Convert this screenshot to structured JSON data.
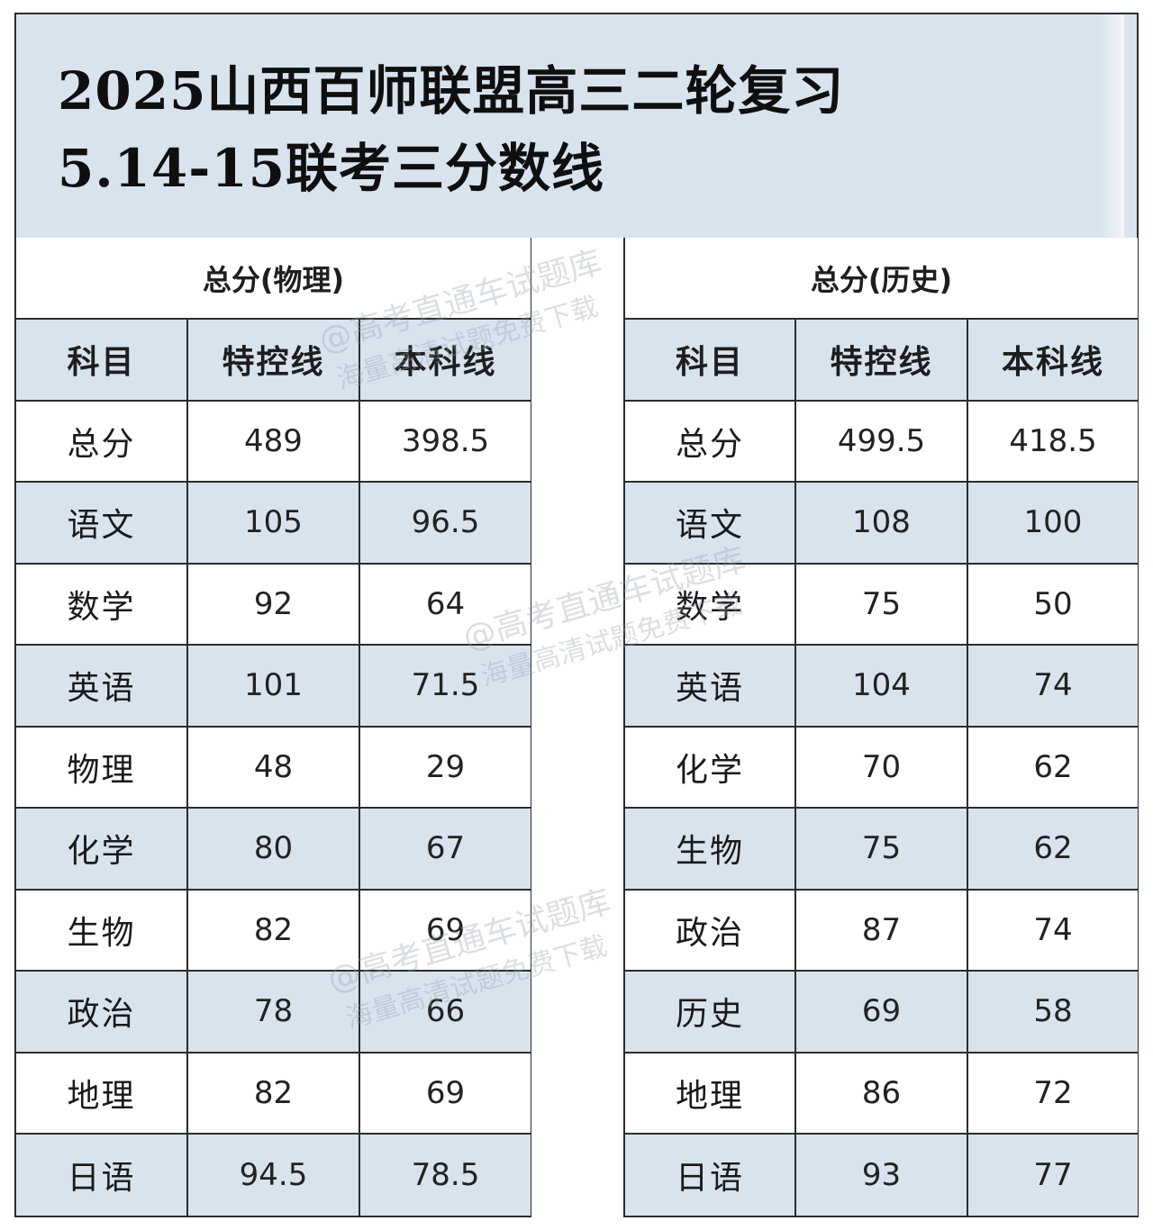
{
  "title": {
    "line1": "2025山西百师联盟高三二轮复习",
    "line2": "5.14-15联考三分数线"
  },
  "watermark": {
    "line1": "@高考直通车试题库",
    "line2": "海量高清试题免费下载"
  },
  "tables": [
    {
      "group": "总分(物理)",
      "headers": [
        "科目",
        "特控线",
        "本科线"
      ],
      "rows": [
        {
          "subject": "总分",
          "special": "489",
          "undergrad": "398.5"
        },
        {
          "subject": "语文",
          "special": "105",
          "undergrad": "96.5"
        },
        {
          "subject": "数学",
          "special": "92",
          "undergrad": "64"
        },
        {
          "subject": "英语",
          "special": "101",
          "undergrad": "71.5"
        },
        {
          "subject": "物理",
          "special": "48",
          "undergrad": "29"
        },
        {
          "subject": "化学",
          "special": "80",
          "undergrad": "67"
        },
        {
          "subject": "生物",
          "special": "82",
          "undergrad": "69"
        },
        {
          "subject": "政治",
          "special": "78",
          "undergrad": "66"
        },
        {
          "subject": "地理",
          "special": "82",
          "undergrad": "69"
        },
        {
          "subject": "日语",
          "special": "94.5",
          "undergrad": "78.5"
        }
      ]
    },
    {
      "group": "总分(历史)",
      "headers": [
        "科目",
        "特控线",
        "本科线"
      ],
      "rows": [
        {
          "subject": "总分",
          "special": "499.5",
          "undergrad": "418.5"
        },
        {
          "subject": "语文",
          "special": "108",
          "undergrad": "100"
        },
        {
          "subject": "数学",
          "special": "75",
          "undergrad": "50"
        },
        {
          "subject": "英语",
          "special": "104",
          "undergrad": "74"
        },
        {
          "subject": "化学",
          "special": "70",
          "undergrad": "62"
        },
        {
          "subject": "生物",
          "special": "75",
          "undergrad": "62"
        },
        {
          "subject": "政治",
          "special": "87",
          "undergrad": "74"
        },
        {
          "subject": "历史",
          "special": "69",
          "undergrad": "58"
        },
        {
          "subject": "地理",
          "special": "86",
          "undergrad": "72"
        },
        {
          "subject": "日语",
          "special": "93",
          "undergrad": "77"
        }
      ]
    }
  ],
  "colors": {
    "shade": "#d8e3ee",
    "border": "#2c2c2c"
  }
}
